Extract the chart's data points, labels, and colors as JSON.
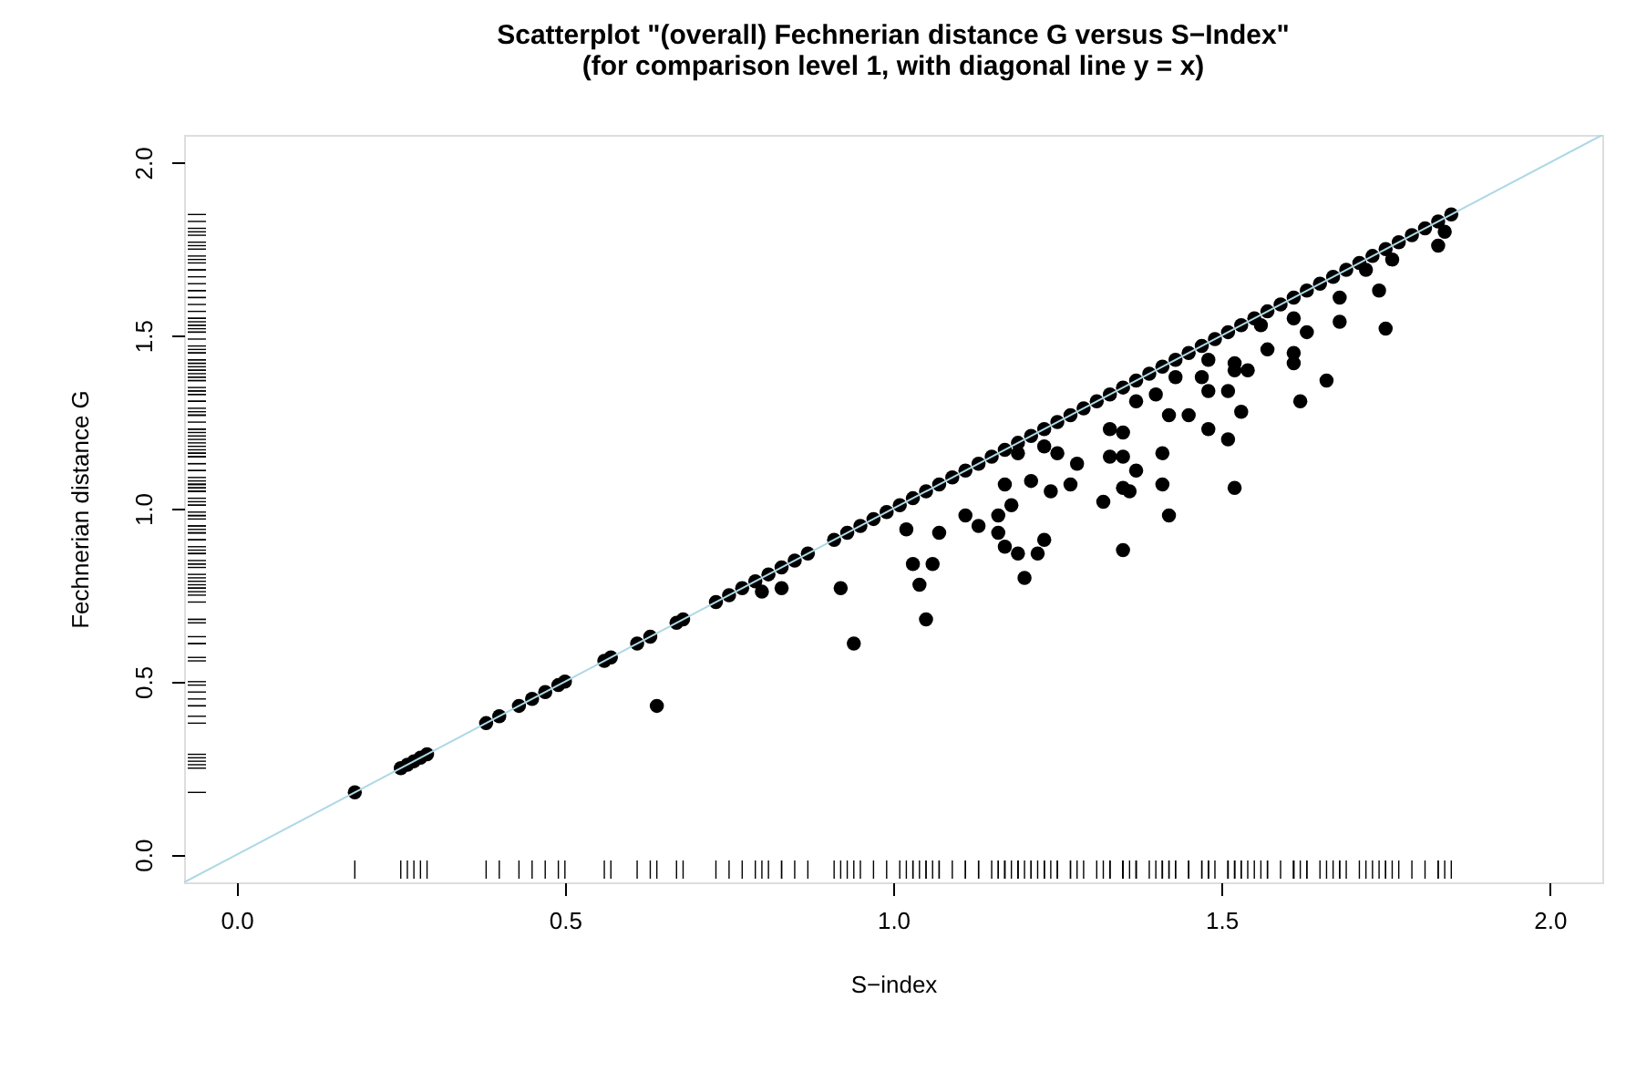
{
  "chart_data": {
    "type": "scatter",
    "title": [
      "Scatterplot \"(overall) Fechnerian distance G versus S−Index\"",
      "(for comparison level 1, with diagonal line y = x)"
    ],
    "xlabel": "S−index",
    "ylabel": "Fechnerian distance G",
    "xlim": [
      -0.08,
      2.08
    ],
    "ylim": [
      -0.08,
      2.08
    ],
    "xticks": [
      {
        "value": 0,
        "label": "0.0"
      },
      {
        "value": 0.5,
        "label": "0.5"
      },
      {
        "value": 1,
        "label": "1.0"
      },
      {
        "value": 1.5,
        "label": "1.5"
      },
      {
        "value": 2,
        "label": "2.0"
      }
    ],
    "yticks": [
      {
        "value": 0,
        "label": "0.0"
      },
      {
        "value": 0.5,
        "label": "0.5"
      },
      {
        "value": 1,
        "label": "1.0"
      },
      {
        "value": 1.5,
        "label": "1.5"
      },
      {
        "value": 2,
        "label": "2.0"
      }
    ],
    "grid": false,
    "marker": "circle",
    "series": [
      {
        "color": "#000000",
        "x": [
          0.18,
          0.25,
          0.26,
          0.27,
          0.28,
          0.29,
          0.38,
          0.4,
          0.43,
          0.45,
          0.47,
          0.49,
          0.5,
          0.56,
          0.57,
          0.61,
          0.63,
          0.67,
          0.68,
          0.73,
          0.75,
          0.77,
          0.79,
          0.81,
          0.83,
          0.85,
          0.87,
          0.91,
          0.93,
          0.95,
          0.97,
          0.99,
          1.01,
          1.03,
          1.05,
          1.07,
          1.09,
          1.11,
          1.13,
          1.15,
          1.17,
          1.19,
          1.21,
          1.23,
          1.25,
          1.27,
          1.29,
          1.31,
          1.33,
          1.35,
          1.37,
          1.39,
          1.41,
          1.43,
          1.45,
          1.47,
          1.49,
          1.51,
          1.53,
          1.55,
          1.57,
          1.59,
          1.61,
          1.63,
          1.65,
          1.67,
          1.69,
          1.71,
          1.73,
          1.75,
          1.77,
          1.79,
          1.81,
          1.83,
          1.85,
          0.8,
          0.83,
          0.64,
          0.92,
          0.94,
          1.02,
          1.07,
          1.03,
          1.06,
          1.04,
          1.05,
          1.11,
          1.13,
          1.16,
          1.16,
          1.17,
          1.19,
          1.2,
          1.22,
          1.23,
          1.18,
          1.24,
          1.27,
          1.17,
          1.21,
          1.19,
          1.23,
          1.25,
          1.28,
          1.32,
          1.35,
          1.35,
          1.36,
          1.33,
          1.35,
          1.33,
          1.35,
          1.37,
          1.41,
          1.41,
          1.42,
          1.37,
          1.4,
          1.42,
          1.45,
          1.43,
          1.47,
          1.48,
          1.51,
          1.52,
          1.53,
          1.48,
          1.51,
          1.52,
          1.54,
          1.52,
          1.57,
          1.61,
          1.62,
          1.66,
          1.61,
          1.63,
          1.68,
          1.68,
          1.74,
          1.75,
          1.76,
          1.72,
          1.83,
          1.84,
          1.56,
          1.61,
          1.48
        ],
        "values": [
          0.18,
          0.25,
          0.26,
          0.27,
          0.28,
          0.29,
          0.38,
          0.4,
          0.43,
          0.45,
          0.47,
          0.49,
          0.5,
          0.56,
          0.57,
          0.61,
          0.63,
          0.67,
          0.68,
          0.73,
          0.75,
          0.77,
          0.79,
          0.81,
          0.83,
          0.85,
          0.87,
          0.91,
          0.93,
          0.95,
          0.97,
          0.99,
          1.01,
          1.03,
          1.05,
          1.07,
          1.09,
          1.11,
          1.13,
          1.15,
          1.17,
          1.19,
          1.21,
          1.23,
          1.25,
          1.27,
          1.29,
          1.31,
          1.33,
          1.35,
          1.37,
          1.39,
          1.41,
          1.43,
          1.45,
          1.47,
          1.49,
          1.51,
          1.53,
          1.55,
          1.57,
          1.59,
          1.61,
          1.63,
          1.65,
          1.67,
          1.69,
          1.71,
          1.73,
          1.75,
          1.77,
          1.79,
          1.81,
          1.83,
          1.85,
          0.76,
          0.77,
          0.43,
          0.77,
          0.61,
          0.94,
          0.93,
          0.84,
          0.84,
          0.78,
          0.68,
          0.98,
          0.95,
          0.98,
          0.93,
          0.89,
          0.87,
          0.8,
          0.87,
          0.91,
          1.01,
          1.05,
          1.07,
          1.07,
          1.08,
          1.16,
          1.18,
          1.16,
          1.13,
          1.02,
          0.88,
          1.06,
          1.05,
          1.15,
          1.15,
          1.23,
          1.22,
          1.11,
          1.16,
          1.07,
          0.98,
          1.31,
          1.33,
          1.27,
          1.27,
          1.38,
          1.38,
          1.23,
          1.2,
          1.06,
          1.28,
          1.34,
          1.34,
          1.4,
          1.4,
          1.42,
          1.46,
          1.42,
          1.31,
          1.37,
          1.45,
          1.51,
          1.54,
          1.61,
          1.63,
          1.52,
          1.72,
          1.69,
          1.76,
          1.8,
          1.53,
          1.55,
          1.43
        ]
      },
      {
        "type": "line",
        "color": "#add8e6",
        "marker": "none",
        "line_style": "solid",
        "x": [
          -0.08,
          2.08
        ],
        "values": [
          -0.08,
          2.08
        ]
      }
    ]
  }
}
